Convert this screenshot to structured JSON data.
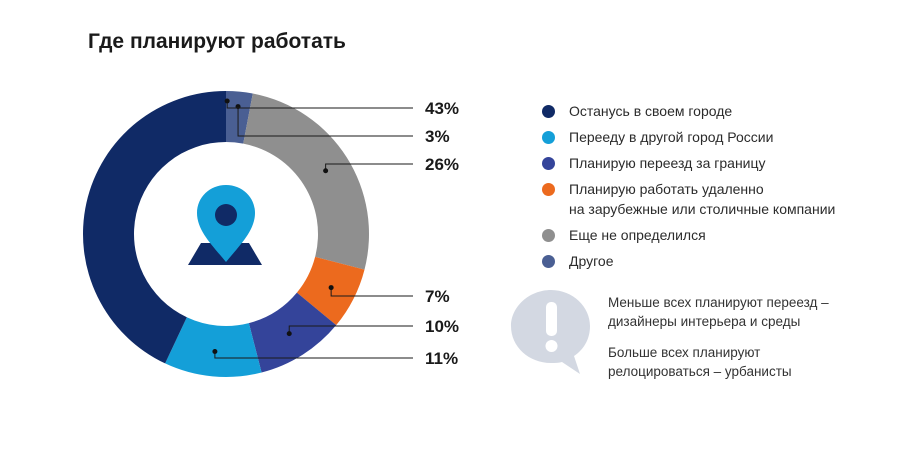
{
  "chart_data": {
    "type": "pie",
    "title": "Где планируют работать",
    "slices": [
      {
        "label": "Другое",
        "value": 3,
        "display": "3%",
        "color": "#4a5f93"
      },
      {
        "label": "Еще не определился",
        "value": 26,
        "display": "26%",
        "color": "#8f8f8f"
      },
      {
        "label": "Планирую работать удаленно\nна зарубежные или столичные компании",
        "value": 7,
        "display": "7%",
        "color": "#ec6a1e"
      },
      {
        "label": "Планирую переезд за границу",
        "value": 10,
        "display": "10%",
        "color": "#34449a"
      },
      {
        "label": "Перееду в другой город России",
        "value": 11,
        "display": "11%",
        "color": "#149fd8"
      },
      {
        "label": "Останусь в своем городе",
        "value": 43,
        "display": "43%",
        "color": "#102a66"
      }
    ],
    "legend_order": [
      "Останусь в своем городе",
      "Перееду в другой город России",
      "Планирую переезд за границу",
      "Планирую работать удаленно\nна зарубежные или столичные компании",
      "Еще не определился",
      "Другое"
    ],
    "legend_position": "right"
  },
  "notes": [
    "Меньше всех планируют переезд –\nдизайнеры интерьера и среды",
    "Больше всех планируют\nрелоцироваться – урбанисты"
  ],
  "icons": {
    "center": "location-pin-on-map-icon",
    "note": "exclamation-speech-bubble-icon"
  },
  "colors": {
    "pin": "#149fd8",
    "pin_dot": "#102a66",
    "pin_base": "#102a66",
    "bubble": "#d3d8e2"
  }
}
